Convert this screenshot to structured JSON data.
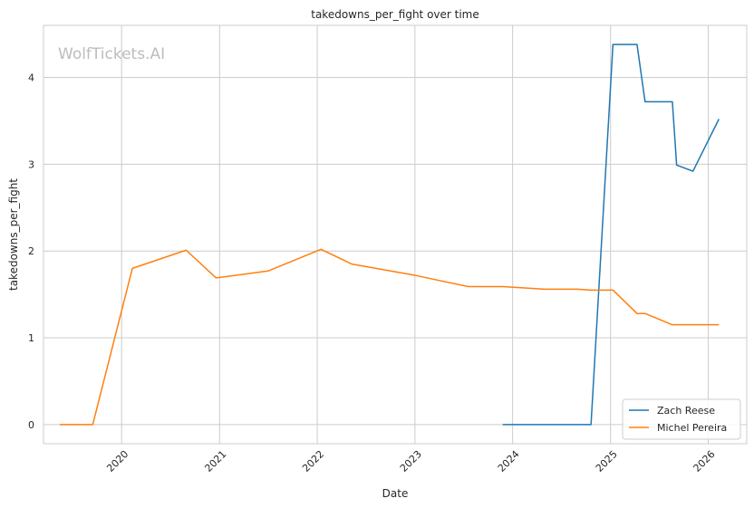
{
  "chart_data": {
    "type": "line",
    "title": "takedowns_per_fight over time",
    "xlabel": "Date",
    "ylabel": "takedowns_per_fight",
    "watermark": "WolfTickets.AI",
    "x_ticks": [
      "2020",
      "2021",
      "2022",
      "2023",
      "2024",
      "2025",
      "2026"
    ],
    "y_ticks": [
      "0",
      "1",
      "2",
      "3",
      "4"
    ],
    "xlim": [
      "2019-03-15",
      "2026-05-25"
    ],
    "ylim": [
      -0.22,
      4.6
    ],
    "grid": true,
    "legend_position": "lower right",
    "series": [
      {
        "name": "Zach Reese",
        "color": "#1f77b4",
        "points": [
          [
            "2023-11-25",
            0
          ],
          [
            "2024-10-20",
            0
          ],
          [
            "2025-01-10",
            4.38
          ],
          [
            "2025-04-10",
            4.38
          ],
          [
            "2025-05-10",
            3.72
          ],
          [
            "2025-08-20",
            3.72
          ],
          [
            "2025-09-05",
            2.99
          ],
          [
            "2025-11-05",
            2.92
          ],
          [
            "2026-02-10",
            3.52
          ]
        ]
      },
      {
        "name": "Michel Pereira",
        "color": "#ff7f0e",
        "points": [
          [
            "2019-05-15",
            0
          ],
          [
            "2019-09-15",
            0
          ],
          [
            "2020-02-10",
            1.8
          ],
          [
            "2020-08-29",
            2.01
          ],
          [
            "2020-12-19",
            1.69
          ],
          [
            "2021-07-01",
            1.77
          ],
          [
            "2022-01-15",
            2.02
          ],
          [
            "2022-05-10",
            1.85
          ],
          [
            "2023-01-01",
            1.72
          ],
          [
            "2023-07-20",
            1.59
          ],
          [
            "2023-11-25",
            1.59
          ],
          [
            "2024-05-01",
            1.56
          ],
          [
            "2024-09-01",
            1.56
          ],
          [
            "2024-10-20",
            1.55
          ],
          [
            "2025-01-10",
            1.55
          ],
          [
            "2025-04-10",
            1.28
          ],
          [
            "2025-05-10",
            1.28
          ],
          [
            "2025-08-20",
            1.15
          ],
          [
            "2026-02-10",
            1.15
          ]
        ]
      }
    ]
  }
}
